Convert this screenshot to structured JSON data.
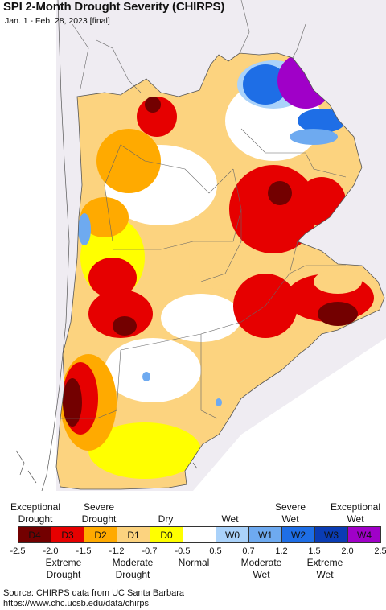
{
  "title": "SPI 2-Month Drought Severity (CHIRPS)",
  "subtitle": "Jan. 1 - Feb. 28, 2023 [final]",
  "map": {
    "colors": {
      "sea": "#ffffff",
      "land_outside": "#efecf2",
      "boundary": "#666666"
    }
  },
  "legend": {
    "top_labels": [
      {
        "text": "Exceptional\nDrought"
      },
      {
        "text": "Severe\nDrought"
      },
      {
        "text": "Dry"
      },
      {
        "text": "Wet"
      },
      {
        "text": "Severe\nWet"
      },
      {
        "text": "Exceptional\nWet"
      }
    ],
    "bottom_labels": [
      {
        "text": "Extreme\nDrought"
      },
      {
        "text": "Moderate\nDrought"
      },
      {
        "text": "Normal"
      },
      {
        "text": "Moderate\nWet"
      },
      {
        "text": "Extreme\nWet"
      }
    ],
    "categories": [
      {
        "code": "D4",
        "color": "#730000"
      },
      {
        "code": "D3",
        "color": "#e60000"
      },
      {
        "code": "D2",
        "color": "#ffaa00"
      },
      {
        "code": "D1",
        "color": "#fcd37f"
      },
      {
        "code": "D0",
        "color": "#ffff00"
      },
      {
        "code": "",
        "color": "#ffffff"
      },
      {
        "code": "W0",
        "color": "#aad2fa"
      },
      {
        "code": "W1",
        "color": "#6eaaf0"
      },
      {
        "code": "W2",
        "color": "#1e6ee6"
      },
      {
        "code": "W3",
        "color": "#0a3cb4"
      },
      {
        "code": "W4",
        "color": "#a000c8"
      }
    ],
    "ticks": [
      "-2.5",
      "-2.0",
      "-1.5",
      "-1.2",
      "-0.7",
      "-0.5",
      "0.5",
      "0.7",
      "1.2",
      "1.5",
      "2.0",
      "2.5"
    ]
  },
  "source": {
    "line1": "Source: CHIRPS data from UC Santa Barbara",
    "line2": "https://www.chc.ucsb.edu/data/chirps"
  }
}
